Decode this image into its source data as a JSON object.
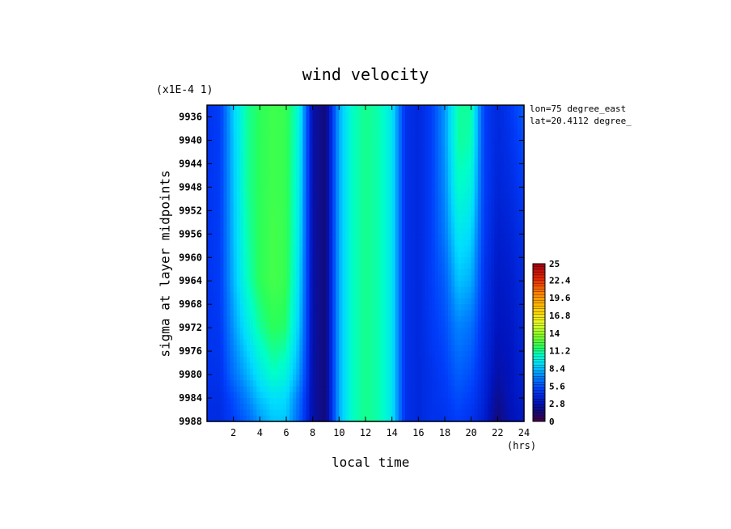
{
  "chart_data": {
    "type": "heatmap",
    "title": "wind velocity",
    "xlabel": "local time",
    "x_unit": "(hrs)",
    "ylabel": "sigma at layer midpoints",
    "y_scale_note": "(x1E-4 1)",
    "annotations": [
      "lon=75 degree_east",
      "lat=20.4112 degree_"
    ],
    "xlim": [
      0,
      24
    ],
    "ylim": [
      9988,
      9934
    ],
    "x_ticks": [
      "2",
      "4",
      "6",
      "8",
      "10",
      "12",
      "14",
      "16",
      "18",
      "20",
      "22",
      "24"
    ],
    "y_ticks": [
      "9936",
      "9940",
      "9944",
      "9948",
      "9952",
      "9956",
      "9960",
      "9964",
      "9968",
      "9972",
      "9976",
      "9980",
      "9984",
      "9988"
    ],
    "colorbar_labels": [
      "25",
      "22.4",
      "19.6",
      "16.8",
      "14",
      "11.2",
      "8.4",
      "5.6",
      "2.8",
      "0"
    ],
    "colorbar_range": [
      0,
      25
    ],
    "x": [
      0,
      1,
      2,
      3,
      4,
      5,
      6,
      7,
      8,
      9,
      10,
      11,
      12,
      13,
      14,
      15,
      16,
      17,
      18,
      19,
      20,
      21,
      22,
      23,
      24
    ],
    "y": [
      9934,
      9940,
      9948,
      9956,
      9964,
      9972,
      9980,
      9984,
      9988
    ],
    "z": [
      [
        4.5,
        5.0,
        8.8,
        11.0,
        11.8,
        12.2,
        12.0,
        10.0,
        2.5,
        1.5,
        8.0,
        10.5,
        11.2,
        10.8,
        9.5,
        4.5,
        4.0,
        5.0,
        7.5,
        11.0,
        11.0,
        5.0,
        4.0,
        4.8,
        6.0
      ],
      [
        4.5,
        5.0,
        8.6,
        11.0,
        11.8,
        12.2,
        12.0,
        9.8,
        2.5,
        1.5,
        8.0,
        10.5,
        11.2,
        10.8,
        9.5,
        4.5,
        4.0,
        5.0,
        7.5,
        11.0,
        10.8,
        5.0,
        4.0,
        4.5,
        5.5
      ],
      [
        4.5,
        5.0,
        8.5,
        11.0,
        11.8,
        12.2,
        12.0,
        9.6,
        2.5,
        1.5,
        8.0,
        10.5,
        11.2,
        10.8,
        9.5,
        4.5,
        4.0,
        5.0,
        7.2,
        10.5,
        10.0,
        5.0,
        3.8,
        4.2,
        5.0
      ],
      [
        4.5,
        5.0,
        8.4,
        10.8,
        11.8,
        12.3,
        12.0,
        9.4,
        2.5,
        1.5,
        8.0,
        10.5,
        11.2,
        10.8,
        9.5,
        4.5,
        4.0,
        5.0,
        6.8,
        9.5,
        9.0,
        4.8,
        3.5,
        3.8,
        4.5
      ],
      [
        4.5,
        5.0,
        8.2,
        10.5,
        11.8,
        12.3,
        12.0,
        9.0,
        2.5,
        1.5,
        8.0,
        10.5,
        11.2,
        10.8,
        9.5,
        4.5,
        4.0,
        5.0,
        6.0,
        8.5,
        8.0,
        4.5,
        3.2,
        3.5,
        4.2
      ],
      [
        4.5,
        4.8,
        7.5,
        9.5,
        11.0,
        11.8,
        11.5,
        8.5,
        2.5,
        1.5,
        8.0,
        10.5,
        11.2,
        10.8,
        9.5,
        4.5,
        4.0,
        4.8,
        5.5,
        7.0,
        6.5,
        4.2,
        3.0,
        3.2,
        4.0
      ],
      [
        4.5,
        4.5,
        6.5,
        8.0,
        9.5,
        10.5,
        10.0,
        7.5,
        2.5,
        1.5,
        8.0,
        10.5,
        11.2,
        10.8,
        9.5,
        4.5,
        4.0,
        4.5,
        5.0,
        6.0,
        5.5,
        4.0,
        2.5,
        3.0,
        3.8
      ],
      [
        4.3,
        4.3,
        5.5,
        7.0,
        8.5,
        9.2,
        9.0,
        6.5,
        2.5,
        1.5,
        8.0,
        10.5,
        11.2,
        10.8,
        9.5,
        4.5,
        4.0,
        4.5,
        4.8,
        5.5,
        5.0,
        3.8,
        2.0,
        3.0,
        3.5
      ],
      [
        4.2,
        4.2,
        5.0,
        6.0,
        7.5,
        8.5,
        8.5,
        6.0,
        2.5,
        1.5,
        8.0,
        10.5,
        11.2,
        10.8,
        9.5,
        4.5,
        4.0,
        4.5,
        4.5,
        5.0,
        4.5,
        3.5,
        1.5,
        2.8,
        3.3
      ]
    ]
  }
}
